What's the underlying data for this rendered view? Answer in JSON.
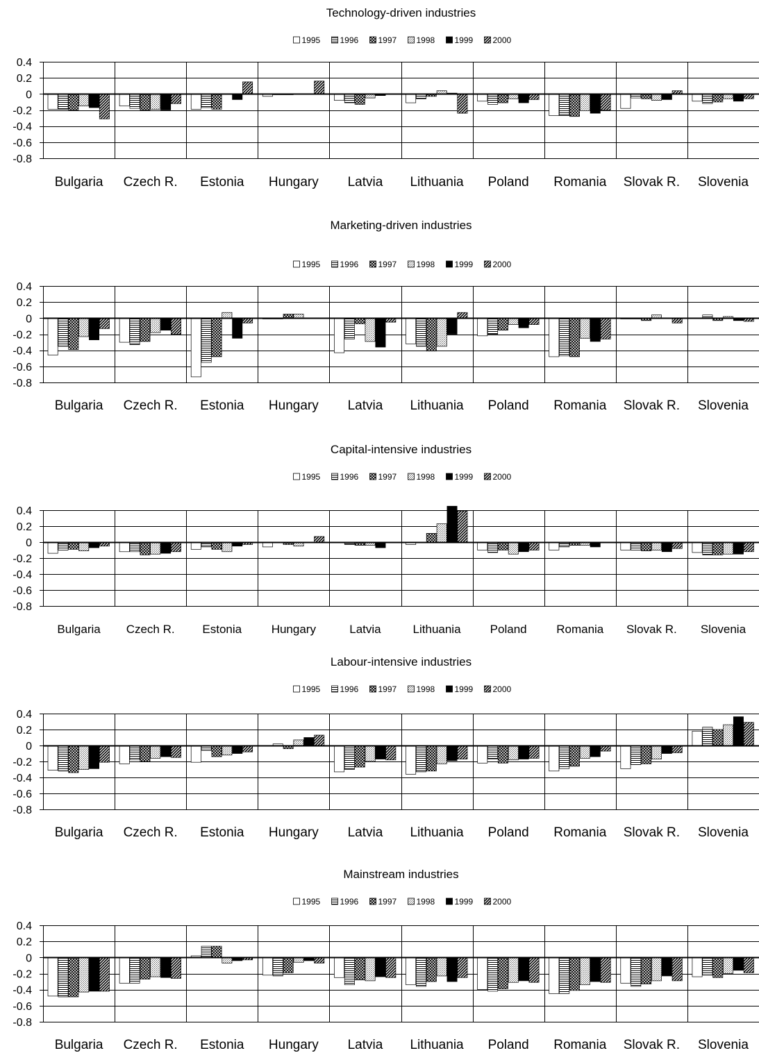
{
  "chart_data": [
    {
      "type": "bar",
      "title": "Technology-driven industries",
      "categories": [
        "Bulgaria",
        "Czech R.",
        "Estonia",
        "Hungary",
        "Latvia",
        "Lithuania",
        "Poland",
        "Romania",
        "Slovak R.",
        "Slovenia"
      ],
      "legend_position": "top-center",
      "ylim": [
        -0.8,
        0.4
      ],
      "yticks": [
        "0.4",
        "0.2",
        "0",
        "-0.2",
        "-0.4",
        "-0.6",
        "-0.8"
      ],
      "grid": true,
      "series": [
        {
          "name": "1995",
          "values": [
            -0.19,
            -0.15,
            -0.19,
            -0.03,
            -0.08,
            -0.11,
            -0.09,
            -0.27,
            -0.18,
            -0.09
          ]
        },
        {
          "name": "1996",
          "values": [
            -0.19,
            -0.18,
            -0.17,
            -0.01,
            -0.11,
            -0.06,
            -0.13,
            -0.27,
            -0.05,
            -0.12
          ]
        },
        {
          "name": "1997",
          "values": [
            -0.2,
            -0.2,
            -0.19,
            -0.01,
            -0.13,
            -0.03,
            -0.11,
            -0.28,
            -0.06,
            -0.1
          ]
        },
        {
          "name": "1998",
          "values": [
            -0.15,
            -0.19,
            0.0,
            0.0,
            -0.05,
            0.04,
            -0.06,
            -0.21,
            -0.08,
            -0.06
          ]
        },
        {
          "name": "1999",
          "values": [
            -0.17,
            -0.2,
            -0.07,
            0.0,
            -0.02,
            0.01,
            -0.11,
            -0.24,
            -0.07,
            -0.09
          ]
        },
        {
          "name": "2000",
          "values": [
            -0.31,
            -0.12,
            0.15,
            0.16,
            0.0,
            -0.24,
            -0.07,
            -0.2,
            0.04,
            -0.06
          ]
        }
      ]
    },
    {
      "type": "bar",
      "title": "Marketing-driven industries",
      "categories": [
        "Bulgaria",
        "Czech R.",
        "Estonia",
        "Hungary",
        "Latvia",
        "Lithuania",
        "Poland",
        "Romania",
        "Slovak R.",
        "Slovenia"
      ],
      "legend_position": "top-center",
      "ylim": [
        -0.8,
        0.4
      ],
      "yticks": [
        "0.4",
        "0.2",
        "0",
        "-0.2",
        "-0.4",
        "-0.6",
        "-0.8"
      ],
      "grid": true,
      "series": [
        {
          "name": "1995",
          "values": [
            -0.46,
            -0.3,
            -0.73,
            -0.01,
            -0.43,
            -0.32,
            -0.22,
            -0.48,
            -0.01,
            0.0
          ]
        },
        {
          "name": "1996",
          "values": [
            -0.35,
            -0.33,
            -0.55,
            -0.01,
            -0.26,
            -0.35,
            -0.2,
            -0.47,
            -0.01,
            0.04
          ]
        },
        {
          "name": "1997",
          "values": [
            -0.39,
            -0.29,
            -0.48,
            0.05,
            -0.07,
            -0.41,
            -0.15,
            -0.48,
            -0.03,
            -0.03
          ]
        },
        {
          "name": "1998",
          "values": [
            -0.23,
            -0.18,
            0.07,
            0.05,
            -0.29,
            -0.35,
            -0.08,
            -0.25,
            0.04,
            0.02
          ]
        },
        {
          "name": "1999",
          "values": [
            -0.27,
            -0.15,
            -0.25,
            0.0,
            -0.36,
            -0.2,
            -0.12,
            -0.29,
            0.0,
            -0.03
          ]
        },
        {
          "name": "2000",
          "values": [
            -0.13,
            -0.2,
            -0.06,
            0.0,
            -0.05,
            0.07,
            -0.08,
            -0.26,
            -0.06,
            -0.04
          ]
        }
      ]
    },
    {
      "type": "bar",
      "title": "Capital-intensive industries",
      "categories": [
        "Bulgaria",
        "Czech R.",
        "Estonia",
        "Hungary",
        "Latvia",
        "Lithuania",
        "Poland",
        "Romania",
        "Slovak R.",
        "Slovenia"
      ],
      "legend_position": "top-center",
      "ylim": [
        -0.8,
        0.4
      ],
      "yticks": [
        "0.4",
        "0.2",
        "0",
        "-0.2",
        "-0.4",
        "-0.6",
        "-0.8"
      ],
      "grid": true,
      "series": [
        {
          "name": "1995",
          "values": [
            -0.14,
            -0.12,
            -0.09,
            -0.06,
            -0.01,
            -0.03,
            -0.1,
            -0.1,
            -0.1,
            -0.13
          ]
        },
        {
          "name": "1996",
          "values": [
            -0.1,
            -0.12,
            -0.06,
            -0.01,
            -0.03,
            -0.01,
            -0.13,
            -0.06,
            -0.1,
            -0.16
          ]
        },
        {
          "name": "1997",
          "values": [
            -0.09,
            -0.16,
            -0.09,
            -0.03,
            -0.04,
            0.11,
            -0.1,
            -0.04,
            -0.11,
            -0.16
          ]
        },
        {
          "name": "1998",
          "values": [
            -0.11,
            -0.15,
            -0.12,
            -0.05,
            -0.04,
            0.23,
            -0.15,
            -0.04,
            -0.1,
            -0.15
          ]
        },
        {
          "name": "1999",
          "values": [
            -0.07,
            -0.14,
            -0.05,
            0.0,
            -0.07,
            0.45,
            -0.12,
            -0.06,
            -0.12,
            -0.15
          ]
        },
        {
          "name": "2000",
          "values": [
            -0.05,
            -0.12,
            -0.03,
            0.07,
            -0.01,
            0.39,
            -0.1,
            0.0,
            -0.08,
            -0.12
          ]
        }
      ]
    },
    {
      "type": "bar",
      "title": "Labour-intensive industries",
      "categories": [
        "Bulgaria",
        "Czech R.",
        "Estonia",
        "Hungary",
        "Latvia",
        "Lithuania",
        "Poland",
        "Romania",
        "Slovak R.",
        "Slovenia"
      ],
      "legend_position": "top-center",
      "ylim": [
        -0.8,
        0.4
      ],
      "yticks": [
        "0.4",
        "0.2",
        "0",
        "-0.2",
        "-0.4",
        "-0.6",
        "-0.8"
      ],
      "grid": true,
      "series": [
        {
          "name": "1995",
          "values": [
            -0.31,
            -0.23,
            -0.21,
            0.0,
            -0.33,
            -0.36,
            -0.22,
            -0.32,
            -0.29,
            0.18
          ]
        },
        {
          "name": "1996",
          "values": [
            -0.32,
            -0.18,
            -0.06,
            0.02,
            -0.3,
            -0.33,
            -0.17,
            -0.29,
            -0.24,
            0.23
          ]
        },
        {
          "name": "1997",
          "values": [
            -0.34,
            -0.2,
            -0.14,
            -0.04,
            -0.27,
            -0.32,
            -0.22,
            -0.26,
            -0.23,
            0.2
          ]
        },
        {
          "name": "1998",
          "values": [
            -0.3,
            -0.16,
            -0.12,
            0.07,
            -0.2,
            -0.23,
            -0.18,
            -0.16,
            -0.17,
            0.26
          ]
        },
        {
          "name": "1999",
          "values": [
            -0.29,
            -0.14,
            -0.1,
            0.1,
            -0.17,
            -0.19,
            -0.17,
            -0.14,
            -0.1,
            0.36
          ]
        },
        {
          "name": "2000",
          "values": [
            -0.21,
            -0.15,
            -0.08,
            0.13,
            -0.18,
            -0.17,
            -0.16,
            -0.07,
            -0.09,
            0.29
          ]
        }
      ]
    },
    {
      "type": "bar",
      "title": "Mainstream industries",
      "categories": [
        "Bulgaria",
        "Czech R.",
        "Estonia",
        "Hungary",
        "Latvia",
        "Lithuania",
        "Poland",
        "Romania",
        "Slovak R.",
        "Slovenia"
      ],
      "legend_position": "top-center",
      "ylim": [
        -0.8,
        0.4
      ],
      "yticks": [
        "0.4",
        "0.2",
        "0",
        "-0.2",
        "-0.4",
        "-0.6",
        "-0.8"
      ],
      "grid": true,
      "series": [
        {
          "name": "1995",
          "values": [
            -0.48,
            -0.32,
            0.02,
            -0.22,
            -0.25,
            -0.34,
            -0.4,
            -0.45,
            -0.32,
            -0.24
          ]
        },
        {
          "name": "1996",
          "values": [
            -0.49,
            -0.32,
            0.14,
            -0.23,
            -0.34,
            -0.36,
            -0.42,
            -0.45,
            -0.36,
            -0.22
          ]
        },
        {
          "name": "1997",
          "values": [
            -0.49,
            -0.27,
            0.14,
            -0.19,
            -0.28,
            -0.3,
            -0.39,
            -0.41,
            -0.33,
            -0.25
          ]
        },
        {
          "name": "1998",
          "values": [
            -0.43,
            -0.24,
            -0.07,
            -0.06,
            -0.29,
            -0.23,
            -0.31,
            -0.34,
            -0.29,
            -0.2
          ]
        },
        {
          "name": "1999",
          "values": [
            -0.42,
            -0.25,
            -0.04,
            -0.04,
            -0.24,
            -0.3,
            -0.29,
            -0.3,
            -0.23,
            -0.16
          ]
        },
        {
          "name": "2000",
          "values": [
            -0.42,
            -0.26,
            -0.03,
            -0.07,
            -0.25,
            -0.25,
            -0.31,
            -0.31,
            -0.29,
            -0.19
          ]
        }
      ]
    }
  ]
}
